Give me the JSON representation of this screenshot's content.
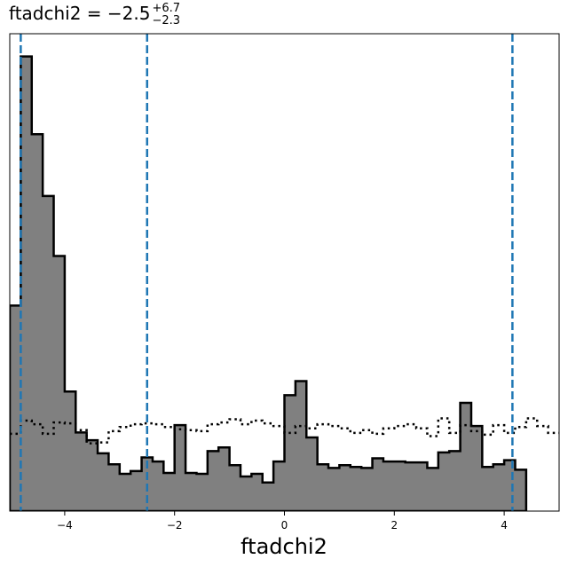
{
  "chart_data": {
    "type": "histogram",
    "title": {
      "prefix": "ftadchi2 = −2.5",
      "sup": "+6.7",
      "sub": "−2.3"
    },
    "xlabel": "ftadchi2",
    "ylabel": "",
    "xlim": [
      -5,
      5
    ],
    "ylim": [
      0,
      1.05
    ],
    "xticks": [
      -4,
      -2,
      0,
      2,
      4
    ],
    "xtick_labels": [
      "−4",
      "−2",
      "0",
      "2",
      "4"
    ],
    "yticks_shown": false,
    "grid": false,
    "bin_edges_start": -5,
    "bin_width": 0.2,
    "series": [
      {
        "style": "filled-step",
        "fill_color": "#808080",
        "line_color": "#000000",
        "values": [
          0.452,
          1.0,
          0.829,
          0.693,
          0.561,
          0.263,
          0.173,
          0.156,
          0.127,
          0.103,
          0.082,
          0.088,
          0.118,
          0.109,
          0.084,
          0.189,
          0.084,
          0.082,
          0.132,
          0.14,
          0.101,
          0.076,
          0.082,
          0.063,
          0.109,
          0.255,
          0.286,
          0.162,
          0.103,
          0.095,
          0.101,
          0.097,
          0.095,
          0.116,
          0.109,
          0.109,
          0.107,
          0.107,
          0.095,
          0.129,
          0.132,
          0.238,
          0.187,
          0.097,
          0.103,
          0.112,
          0.091
        ]
      },
      {
        "style": "dotted-step",
        "line_color": "#000000",
        "values": [
          0.17,
          0.199,
          0.191,
          0.17,
          0.195,
          0.193,
          0.178,
          0.149,
          0.151,
          0.176,
          0.185,
          0.191,
          0.193,
          0.191,
          0.185,
          0.18,
          0.178,
          0.176,
          0.191,
          0.195,
          0.202,
          0.191,
          0.199,
          0.193,
          0.187,
          0.172,
          0.187,
          0.182,
          0.191,
          0.187,
          0.182,
          0.172,
          0.178,
          0.17,
          0.182,
          0.187,
          0.191,
          0.182,
          0.165,
          0.204,
          0.172,
          0.189,
          0.176,
          0.168,
          0.189,
          0.172,
          0.185,
          0.204,
          0.187,
          0.172
        ]
      }
    ],
    "vlines": {
      "color": "#1f77b4",
      "style": "dashed",
      "x": [
        -4.8,
        -2.5,
        4.15
      ]
    }
  }
}
